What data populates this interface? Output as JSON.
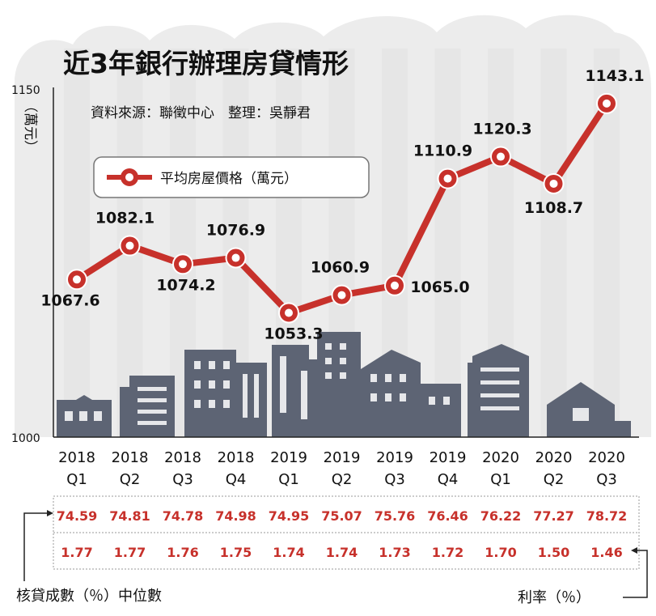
{
  "title": "近3年銀行辦理房貸情形",
  "source_line": "資料來源：聯徵中心　整理：吳靜君",
  "colors": {
    "series": "#c7312b",
    "buildings": "#5d6474",
    "backdrop": "#ececec",
    "stripe": "#e6e6e6"
  },
  "chart_data": {
    "type": "line",
    "title": "近3年銀行辦理房貸情形",
    "ylabel": "（萬元）",
    "ylim": [
      1000,
      1150
    ],
    "yticks": [
      "1150",
      "1000"
    ],
    "categories": [
      [
        "2018",
        "Q1"
      ],
      [
        "2018",
        "Q2"
      ],
      [
        "2018",
        "Q3"
      ],
      [
        "2018",
        "Q4"
      ],
      [
        "2019",
        "Q1"
      ],
      [
        "2019",
        "Q2"
      ],
      [
        "2019",
        "Q3"
      ],
      [
        "2019",
        "Q4"
      ],
      [
        "2020",
        "Q1"
      ],
      [
        "2020",
        "Q2"
      ],
      [
        "2020",
        "Q3"
      ]
    ],
    "series": [
      {
        "name": "平均房屋價格（萬元）",
        "values": [
          1067.6,
          1082.1,
          1074.2,
          1076.9,
          1053.3,
          1060.9,
          1065.0,
          1110.9,
          1120.3,
          1108.7,
          1143.1
        ],
        "labels": [
          "1067.6",
          "1082.1",
          "1074.2",
          "1076.9",
          "1053.3",
          "1060.9",
          "1065.0",
          "1110.9",
          "1120.3",
          "1108.7",
          "1143.1"
        ]
      }
    ],
    "legend": "top-left",
    "grid": false
  },
  "table": {
    "ltv_label": "核貸成數（％）中位數",
    "rate_label": "利率（％）",
    "ltv": [
      "74.59",
      "74.81",
      "74.78",
      "74.98",
      "74.95",
      "75.07",
      "75.76",
      "76.46",
      "76.22",
      "77.27",
      "78.72"
    ],
    "rate": [
      "1.77",
      "1.77",
      "1.76",
      "1.75",
      "1.74",
      "1.74",
      "1.73",
      "1.72",
      "1.70",
      "1.50",
      "1.46"
    ]
  }
}
